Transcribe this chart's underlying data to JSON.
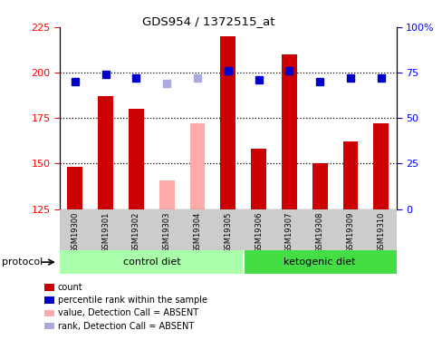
{
  "title": "GDS954 / 1372515_at",
  "samples": [
    "GSM19300",
    "GSM19301",
    "GSM19302",
    "GSM19303",
    "GSM19304",
    "GSM19305",
    "GSM19306",
    "GSM19307",
    "GSM19308",
    "GSM19309",
    "GSM19310"
  ],
  "bar_values": [
    148,
    187,
    180,
    141,
    172,
    220,
    158,
    210,
    150,
    162,
    172
  ],
  "bar_absent": [
    false,
    false,
    false,
    true,
    true,
    false,
    false,
    false,
    false,
    false,
    false
  ],
  "rank_values": [
    70,
    74,
    72,
    69,
    72,
    76,
    71,
    76,
    70,
    72,
    72
  ],
  "rank_absent": [
    false,
    false,
    false,
    true,
    true,
    false,
    false,
    false,
    false,
    false,
    false
  ],
  "ylim_left": [
    125,
    225
  ],
  "ylim_right": [
    0,
    100
  ],
  "yticks_left": [
    125,
    150,
    175,
    200,
    225
  ],
  "yticks_right": [
    0,
    25,
    50,
    75,
    100
  ],
  "ytick_labels_right": [
    "0",
    "25",
    "50",
    "75",
    "100%"
  ],
  "bar_color": "#cc0000",
  "bar_absent_color": "#ffaaaa",
  "rank_color": "#0000cc",
  "rank_absent_color": "#aaaadd",
  "dotted_lines": [
    150,
    175,
    200
  ],
  "group1_label": "control diet",
  "group2_label": "ketogenic diet",
  "group1_color": "#aaffaa",
  "group2_color": "#44dd44",
  "protocol_label": "protocol",
  "bar_width": 0.5,
  "rank_marker_size": 6
}
